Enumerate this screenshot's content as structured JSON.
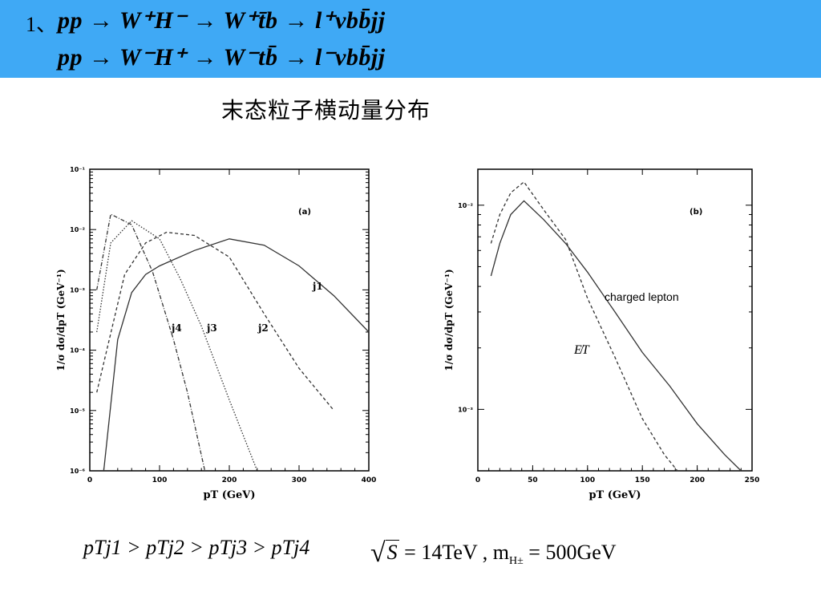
{
  "header": {
    "number": "1、",
    "line1": "pp → W⁺H⁻ → W⁺t̄b → l⁺νbb̄jj",
    "line2": "pp → W⁻H⁺ → W⁻tb̄ → l⁻νbb̄jj"
  },
  "subtitle": "末态粒子横动量分布",
  "footer": {
    "ordering": "pTj1 > pTj2 > pTj3 > pTj4",
    "sqrt_s": "S",
    "params": "= 14TeV , m",
    "mass_sub": "H±",
    "mass_val": "= 500GeV"
  },
  "chart_data": [
    {
      "type": "line",
      "panel": "(a)",
      "xlabel": "pT (GeV)",
      "ylabel": "1/σ dσ/dpT (GeV⁻¹)",
      "xlim": [
        0,
        400
      ],
      "ylim": [
        1e-06,
        0.1
      ],
      "yscale": "log",
      "xticks": [
        "0",
        "100",
        "200",
        "300",
        "400"
      ],
      "yticks": [
        "10⁻¹",
        "10⁻²",
        "10⁻³",
        "10⁻⁴",
        "10⁻⁵",
        "10⁻⁶"
      ],
      "series": [
        {
          "name": "j1",
          "style": "solid",
          "x": [
            20,
            40,
            60,
            80,
            100,
            150,
            200,
            250,
            300,
            350,
            400
          ],
          "y": [
            1e-06,
            0.00015,
            0.0009,
            0.0018,
            0.0025,
            0.0045,
            0.007,
            0.0055,
            0.0025,
            0.0008,
            0.0002
          ]
        },
        {
          "name": "j2",
          "style": "dashed",
          "x": [
            10,
            50,
            80,
            110,
            150,
            200,
            250,
            300,
            350
          ],
          "y": [
            2e-05,
            0.0018,
            0.006,
            0.009,
            0.008,
            0.0035,
            0.0004,
            5e-05,
            1e-05
          ]
        },
        {
          "name": "j3",
          "style": "dotted",
          "x": [
            10,
            30,
            60,
            100,
            130,
            160,
            200,
            240
          ],
          "y": [
            0.0002,
            0.006,
            0.014,
            0.007,
            0.0015,
            0.00025,
            1.5e-05,
            1e-06
          ]
        },
        {
          "name": "j4",
          "style": "dashed-dotted",
          "x": [
            10,
            30,
            60,
            90,
            120,
            140,
            165
          ],
          "y": [
            0.001,
            0.018,
            0.012,
            0.002,
            0.00015,
            2e-05,
            1e-06
          ]
        }
      ]
    },
    {
      "type": "line",
      "panel": "(b)",
      "xlabel": "pT (GeV)",
      "ylabel": "1/σ dσ/dpT (GeV⁻¹)",
      "xlim": [
        0,
        250
      ],
      "ylim": [
        0.0005,
        0.015
      ],
      "yscale": "log",
      "xticks": [
        "0",
        "50",
        "100",
        "150",
        "200",
        "250"
      ],
      "yticks": [
        "10⁻²",
        "10⁻³"
      ],
      "annotations": [
        "charged lepton",
        "E̸T"
      ],
      "series": [
        {
          "name": "charged lepton",
          "style": "solid",
          "x": [
            12,
            20,
            30,
            42,
            60,
            80,
            100,
            125,
            150,
            175,
            200,
            225,
            240
          ],
          "y": [
            0.0045,
            0.0065,
            0.009,
            0.0105,
            0.0085,
            0.0065,
            0.0047,
            0.003,
            0.0019,
            0.0013,
            0.00085,
            0.0006,
            0.0005
          ]
        },
        {
          "name": "E̸T",
          "style": "dashed",
          "x": [
            12,
            20,
            30,
            42,
            60,
            80,
            100,
            125,
            150,
            170,
            182
          ],
          "y": [
            0.0065,
            0.009,
            0.0115,
            0.013,
            0.0095,
            0.0068,
            0.0035,
            0.0018,
            0.0009,
            0.0006,
            0.0005
          ]
        }
      ]
    }
  ]
}
